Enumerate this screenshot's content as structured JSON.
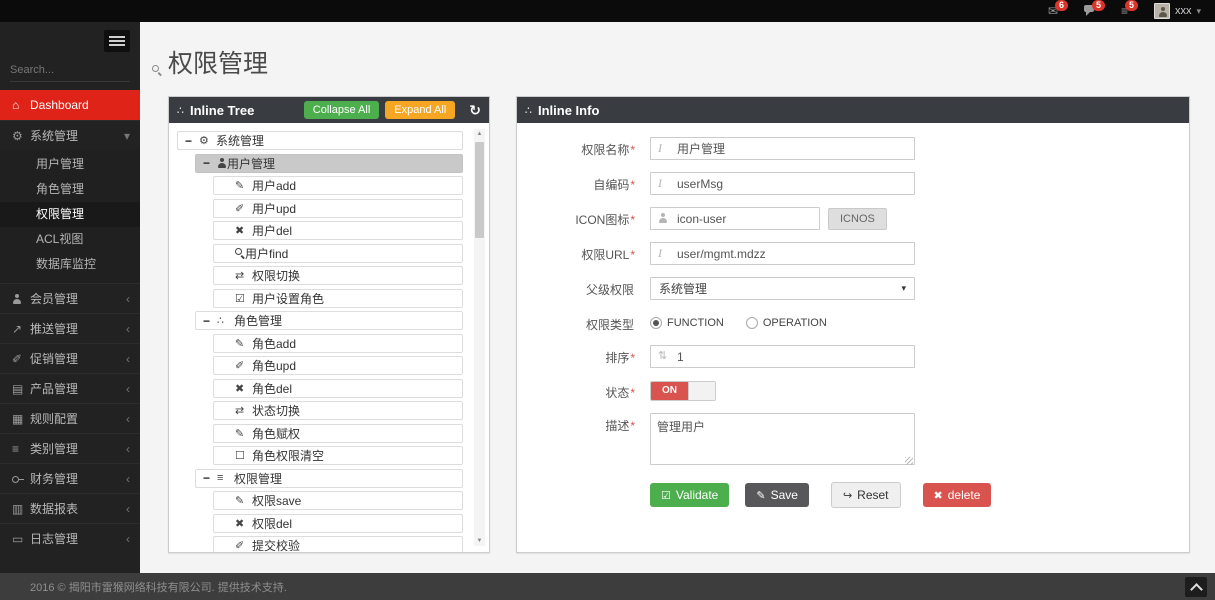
{
  "topbar": {
    "notifications": [
      {
        "icon": "envelope",
        "count": "6"
      },
      {
        "icon": "comments",
        "count": "5"
      },
      {
        "icon": "tasks",
        "count": "5"
      }
    ],
    "user": {
      "name": "xxx"
    }
  },
  "sidebar": {
    "search_placeholder": "Search...",
    "items": [
      {
        "key": "dashboard",
        "icon": "home",
        "label": "Dashboard",
        "active": true
      },
      {
        "key": "system",
        "icon": "gears",
        "label": "系统管理",
        "expanded": true,
        "children": [
          {
            "key": "users",
            "label": "用户管理"
          },
          {
            "key": "roles",
            "label": "角色管理"
          },
          {
            "key": "permissions",
            "label": "权限管理",
            "active": true
          },
          {
            "key": "acl",
            "label": "ACL视图"
          },
          {
            "key": "db-monitor",
            "label": "数据库监控"
          }
        ]
      },
      {
        "key": "member",
        "icon": "user",
        "label": "会员管理"
      },
      {
        "key": "push",
        "icon": "share",
        "label": "推送管理"
      },
      {
        "key": "promotion",
        "icon": "promo",
        "label": "促销管理"
      },
      {
        "key": "product",
        "icon": "product",
        "label": "产品管理"
      },
      {
        "key": "rules",
        "icon": "table",
        "label": "规则配置"
      },
      {
        "key": "category",
        "icon": "list",
        "label": "类别管理"
      },
      {
        "key": "finance",
        "icon": "key",
        "label": "财务管理"
      },
      {
        "key": "reports",
        "icon": "chart",
        "label": "数据报表"
      },
      {
        "key": "logs",
        "icon": "log",
        "label": "日志管理"
      }
    ]
  },
  "page": {
    "title": "权限管理"
  },
  "tree_panel": {
    "title": "Inline Tree",
    "collapse_all_label": "Collapse All",
    "expand_all_label": "Expand All",
    "nodes": [
      {
        "label": "系统管理",
        "level": 0,
        "icon": "gears",
        "toggle": true
      },
      {
        "label": "用户管理",
        "level": 1,
        "icon": "user",
        "toggle": true,
        "selected": true
      },
      {
        "label": "用户add",
        "level": 2,
        "icon": "pencil"
      },
      {
        "label": "用户upd",
        "level": 2,
        "icon": "edit"
      },
      {
        "label": "用户del",
        "level": 2,
        "icon": "x"
      },
      {
        "label": "用户find",
        "level": 2,
        "icon": "search"
      },
      {
        "label": "权限切换",
        "level": 2,
        "icon": "retweet"
      },
      {
        "label": "用户设置角色",
        "level": 2,
        "icon": "check-square"
      },
      {
        "label": "角色管理",
        "level": 1,
        "icon": "sitemap",
        "toggle": true
      },
      {
        "label": "角色add",
        "level": 2,
        "icon": "pencil"
      },
      {
        "label": "角色upd",
        "level": 2,
        "icon": "edit"
      },
      {
        "label": "角色del",
        "level": 2,
        "icon": "x"
      },
      {
        "label": "状态切换",
        "level": 2,
        "icon": "retweet"
      },
      {
        "label": "角色赋权",
        "level": 2,
        "icon": "pencil"
      },
      {
        "label": "角色权限清空",
        "level": 2,
        "icon": "square"
      },
      {
        "label": "权限管理",
        "level": 1,
        "icon": "list",
        "toggle": true
      },
      {
        "label": "权限save",
        "level": 2,
        "icon": "pencil"
      },
      {
        "label": "权限del",
        "level": 2,
        "icon": "x"
      },
      {
        "label": "提交校验",
        "level": 2,
        "icon": "edit"
      }
    ]
  },
  "info_panel": {
    "title": "Inline Info",
    "fields": {
      "name": {
        "label": "权限名称",
        "required": true,
        "value": "用户管理"
      },
      "code": {
        "label": "自编码",
        "required": true,
        "value": "userMsg"
      },
      "icon": {
        "label": "ICON图标",
        "required": true,
        "value": "icon-user",
        "button_label": "ICNOS"
      },
      "url": {
        "label": "权限URL",
        "required": true,
        "value": "user/mgmt.mdzz"
      },
      "parent": {
        "label": "父级权限",
        "required": false,
        "value": "系统管理"
      },
      "type": {
        "label": "权限类型",
        "required": false,
        "options": [
          {
            "label": "FUNCTION",
            "checked": true
          },
          {
            "label": "OPERATION",
            "checked": false
          }
        ]
      },
      "sort": {
        "label": "排序",
        "required": true,
        "value": "1"
      },
      "status": {
        "label": "状态",
        "required": true,
        "value": "ON"
      },
      "desc": {
        "label": "描述",
        "required": true,
        "value": "管理用户"
      }
    },
    "buttons": {
      "validate": "Validate",
      "save": "Save",
      "reset": "Reset",
      "delete": "delete"
    }
  },
  "footer": {
    "text": "2016 © 揭阳市雷猴网络科技有限公司. 提供技术支持."
  },
  "colors": {
    "accent_red": "#df2318",
    "badge_red": "#d9352a",
    "green": "#4cae4c",
    "orange": "#f5a623",
    "danger": "#d9534f",
    "dark_button": "#58585b",
    "panel_header": "#393d42",
    "selected_row": "#c9c9c9"
  }
}
